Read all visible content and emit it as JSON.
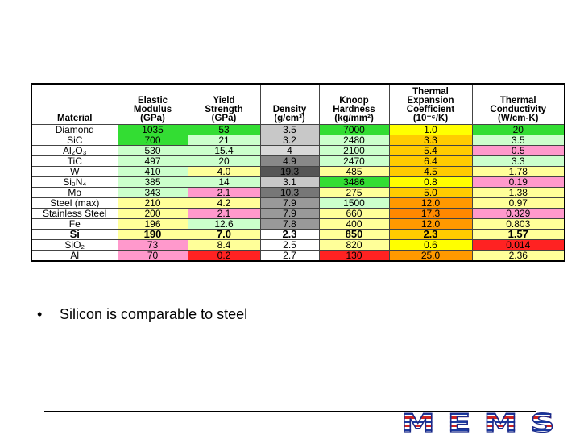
{
  "table": {
    "header": [
      [
        "Material"
      ],
      [
        "Elastic",
        "Modulus",
        "(GPa)"
      ],
      [
        "Yield",
        "Strength",
        "(GPa)"
      ],
      [
        "Density",
        "(g/cm³)"
      ],
      [
        "Knoop",
        "Hardness",
        "(kg/mm²)"
      ],
      [
        "Thermal",
        "Expansion",
        "Coefficient",
        "(10⁻⁶/K)"
      ],
      [
        "Thermal",
        "Conductivity",
        "(W/cm-K)"
      ]
    ],
    "rows": [
      {
        "cells": [
          "Diamond",
          "1035",
          "53",
          "3.5",
          "7000",
          "1.0",
          "20"
        ],
        "colors": [
          "#ffffff",
          "#33dd33",
          "#33dd33",
          "#c8c8c8",
          "#33dd33",
          "#ffff00",
          "#33dd33"
        ]
      },
      {
        "cells": [
          "SiC",
          "700",
          "21",
          "3.2",
          "2480",
          "3.3",
          "3.5"
        ],
        "colors": [
          "#ffffff",
          "#33dd33",
          "#ccffcc",
          "#c8c8c8",
          "#ccffcc",
          "#ffcc00",
          "#ccffcc"
        ]
      },
      {
        "cells": [
          "Al₂O₃",
          "530",
          "15.4",
          "4",
          "2100",
          "5.4",
          "0.5"
        ],
        "colors": [
          "#ffffff",
          "#ccffcc",
          "#ccffcc",
          "#d8d8d8",
          "#ccffcc",
          "#ffcc00",
          "#ff99cc"
        ]
      },
      {
        "cells": [
          "TiC",
          "497",
          "20",
          "4.9",
          "2470",
          "6.4",
          "3.3"
        ],
        "colors": [
          "#ffffff",
          "#ccffcc",
          "#ccffcc",
          "#888888",
          "#ccffcc",
          "#ffcc00",
          "#ccffcc"
        ]
      },
      {
        "cells": [
          "W",
          "410",
          "4.0",
          "19.3",
          "485",
          "4.5",
          "1.78"
        ],
        "colors": [
          "#ffffff",
          "#ccffcc",
          "#ffff99",
          "#555555",
          "#ffff99",
          "#ffcc00",
          "#ffff99"
        ]
      },
      {
        "cells": [
          "Si₃N₄",
          "385",
          "14",
          "3.1",
          "3486",
          "0.8",
          "0.19"
        ],
        "colors": [
          "#ffffff",
          "#ccffcc",
          "#ccffcc",
          "#c8c8c8",
          "#33dd33",
          "#ffff00",
          "#ff99cc"
        ]
      },
      {
        "cells": [
          "Mo",
          "343",
          "2.1",
          "10.3",
          "275",
          "5.0",
          "1.38"
        ],
        "colors": [
          "#ffffff",
          "#ccffcc",
          "#ff99cc",
          "#777777",
          "#ffff99",
          "#ffcc00",
          "#ffff99"
        ]
      },
      {
        "cells": [
          "Steel (max)",
          "210",
          "4.2",
          "7.9",
          "1500",
          "12.0",
          "0.97"
        ],
        "colors": [
          "#ffffff",
          "#ffff99",
          "#ffff99",
          "#999999",
          "#ccffcc",
          "#ff9900",
          "#ffff99"
        ]
      },
      {
        "cells": [
          "Stainless Steel",
          "200",
          "2.1",
          "7.9",
          "660",
          "17.3",
          "0.329"
        ],
        "colors": [
          "#ffffff",
          "#ffff99",
          "#ff99cc",
          "#999999",
          "#ffff99",
          "#ff8800",
          "#ff99cc"
        ]
      },
      {
        "cells": [
          "Fe",
          "196",
          "12.6",
          "7.8",
          "400",
          "12.0",
          "0.803"
        ],
        "colors": [
          "#ffffff",
          "#ffff99",
          "#ccffcc",
          "#999999",
          "#ffff99",
          "#ff9900",
          "#ffff99"
        ]
      },
      {
        "cells": [
          "Si",
          "190",
          "7.0",
          "2.3",
          "850",
          "2.3",
          "1.57"
        ],
        "colors": [
          "#ffffff",
          "#ffff99",
          "#ffff99",
          "#ffffff",
          "#ffff99",
          "#ffcc00",
          "#ffff99"
        ],
        "bold": true
      },
      {
        "cells": [
          "SiO₂",
          "73",
          "8.4",
          "2.5",
          "820",
          "0.6",
          "0.014"
        ],
        "colors": [
          "#ffffff",
          "#ff99cc",
          "#ffff99",
          "#ffffff",
          "#ffff99",
          "#ffff00",
          "#ff2222"
        ]
      },
      {
        "cells": [
          "Al",
          "70",
          "0.2",
          "2.7",
          "130",
          "25.0",
          "2.36"
        ],
        "colors": [
          "#ffffff",
          "#ff99cc",
          "#ff2222",
          "#ffffff",
          "#ff2222",
          "#ff9900",
          "#ffff99"
        ]
      }
    ]
  },
  "bullet": "Silicon is comparable to steel",
  "logo": "MEMS"
}
